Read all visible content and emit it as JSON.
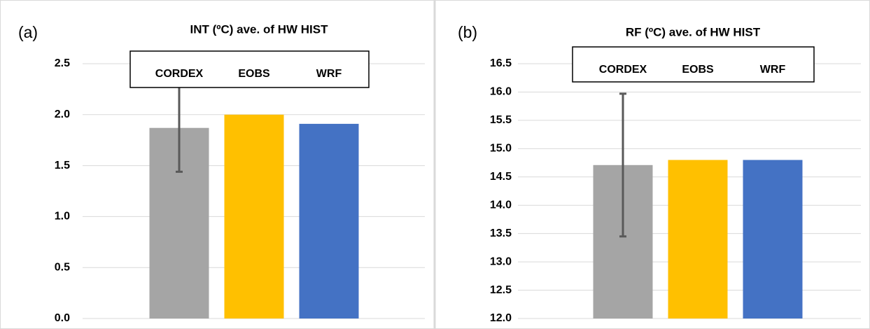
{
  "chart_data": [
    {
      "type": "bar",
      "title": "INT (ºC) ave. of HW HIST",
      "annotation": "(a)",
      "ylim": [
        0,
        2.5
      ],
      "yticks": [
        {
          "value": 0,
          "label": "0.0"
        },
        0.5,
        {
          "value": 1,
          "label": "1.0"
        },
        1.5,
        {
          "value": 2,
          "label": "2.0"
        },
        2.5
      ],
      "grid": true,
      "series": [
        {
          "name": "CORDEX",
          "color": "#a5a5a5",
          "values": [
            1.87
          ],
          "errors": [
            0.43
          ]
        },
        {
          "name": "EOBS",
          "color": "#ffc000",
          "values": [
            2.0
          ]
        },
        {
          "name": "WRF",
          "color": "#4472c4",
          "values": [
            1.91
          ]
        }
      ]
    },
    {
      "type": "bar",
      "title": "RF (ºC) ave. of HW HIST",
      "annotation": "(b)",
      "ylim": [
        12,
        16.5
      ],
      "yticks": [
        {
          "value": 12,
          "label": "12.0"
        },
        12.5,
        {
          "value": 13,
          "label": "13.0"
        },
        13.5,
        {
          "value": 14,
          "label": "14.0"
        },
        14.5,
        {
          "value": 15,
          "label": "15.0"
        },
        15.5,
        {
          "value": 16,
          "label": "16.0"
        },
        16.5
      ],
      "grid": true,
      "series": [
        {
          "name": "CORDEX",
          "color": "#a5a5a5",
          "values": [
            14.71
          ],
          "errors": [
            1.26
          ]
        },
        {
          "name": "EOBS",
          "color": "#ffc000",
          "values": [
            14.8
          ]
        },
        {
          "name": "WRF",
          "color": "#4472c4",
          "values": [
            14.8
          ]
        }
      ]
    }
  ]
}
